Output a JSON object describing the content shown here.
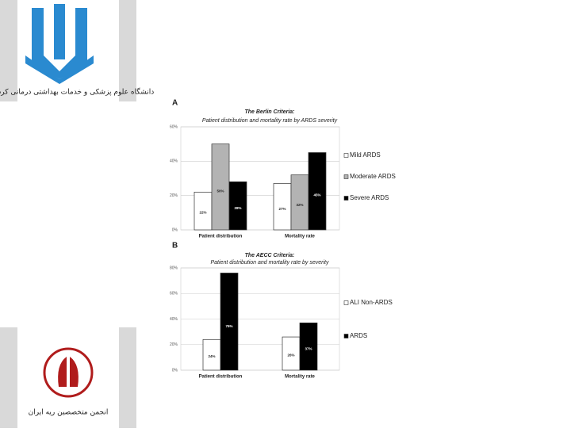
{
  "logos": {
    "university": "دانشگاه علوم پزشکی و خدمات بهداشتی درمانی کردستان",
    "society": "انجمن متخصصین ریه ایران"
  },
  "chart_data": [
    {
      "type": "bar",
      "panel_label": "A",
      "title": "The Berlin Criteria:",
      "subtitle": "Patient distribution and mortality rate by ARDS severity",
      "categories": [
        "Patient distribution",
        "Mortality rate"
      ],
      "series": [
        {
          "name": "Mild ARDS",
          "color": "#ffffff",
          "values": [
            22,
            27
          ],
          "value_labels": [
            "22%",
            "27%"
          ]
        },
        {
          "name": "Moderate ARDS",
          "color": "#b3b3b3",
          "values": [
            50,
            32
          ],
          "value_labels": [
            "50%",
            "32%"
          ]
        },
        {
          "name": "Severe ARDS",
          "color": "#000000",
          "values": [
            28,
            45
          ],
          "value_labels": [
            "28%",
            "45%"
          ]
        }
      ],
      "ylim": [
        0,
        60
      ],
      "yticks": [
        {
          "value": 0,
          "label": "0%"
        },
        {
          "value": 20,
          "label": "20%"
        },
        {
          "value": 40,
          "label": "40%"
        },
        {
          "value": 60,
          "label": "60%"
        }
      ],
      "legend": "right"
    },
    {
      "type": "bar",
      "panel_label": "B",
      "title": "The AECC Criteria:",
      "subtitle": "Patient distribution and mortality rate by severity",
      "categories": [
        "Patient distribution",
        "Mortality rate"
      ],
      "series": [
        {
          "name": "ALI Non-ARDS",
          "color": "#ffffff",
          "values": [
            24,
            26
          ],
          "value_labels": [
            "24%",
            "26%"
          ]
        },
        {
          "name": "ARDS",
          "color": "#000000",
          "values": [
            76,
            37
          ],
          "value_labels": [
            "76%",
            "37%"
          ]
        }
      ],
      "ylim": [
        0,
        80
      ],
      "yticks": [
        {
          "value": 0,
          "label": "0%"
        },
        {
          "value": 20,
          "label": "20%"
        },
        {
          "value": 40,
          "label": "40%"
        },
        {
          "value": 60,
          "label": "60%"
        },
        {
          "value": 80,
          "label": "80%"
        }
      ],
      "legend": "right"
    }
  ]
}
